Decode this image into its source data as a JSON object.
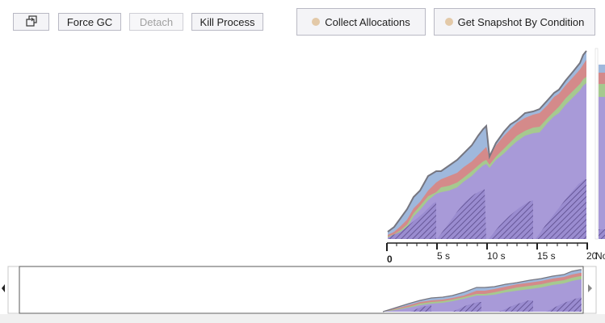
{
  "toolbar": {
    "popout_icon": "popout-window-icon",
    "force_gc": "Force GC",
    "detach": "Detach",
    "kill_process": "Kill Process",
    "collect_allocations": "Collect Allocations",
    "get_snapshot": "Get Snapshot By Condition",
    "dot_color": "#e3c9a8"
  },
  "chart_data": {
    "type": "area",
    "stacked": true,
    "x_unit": "s",
    "xlim": [
      0,
      20
    ],
    "x_ticks": [
      "0",
      "5 s",
      "10 s",
      "15 s",
      "20"
    ],
    "truncated_label": "No",
    "series": [
      {
        "color": "#a89ad8",
        "hatched": true
      },
      {
        "color": "#a6c98f"
      },
      {
        "color": "#d48a8a"
      },
      {
        "color": "#9fb8dc"
      }
    ]
  },
  "overview": {
    "left_arrow": "left-scroll-arrow-icon",
    "right_arrow": "right-scroll-arrow-icon"
  }
}
